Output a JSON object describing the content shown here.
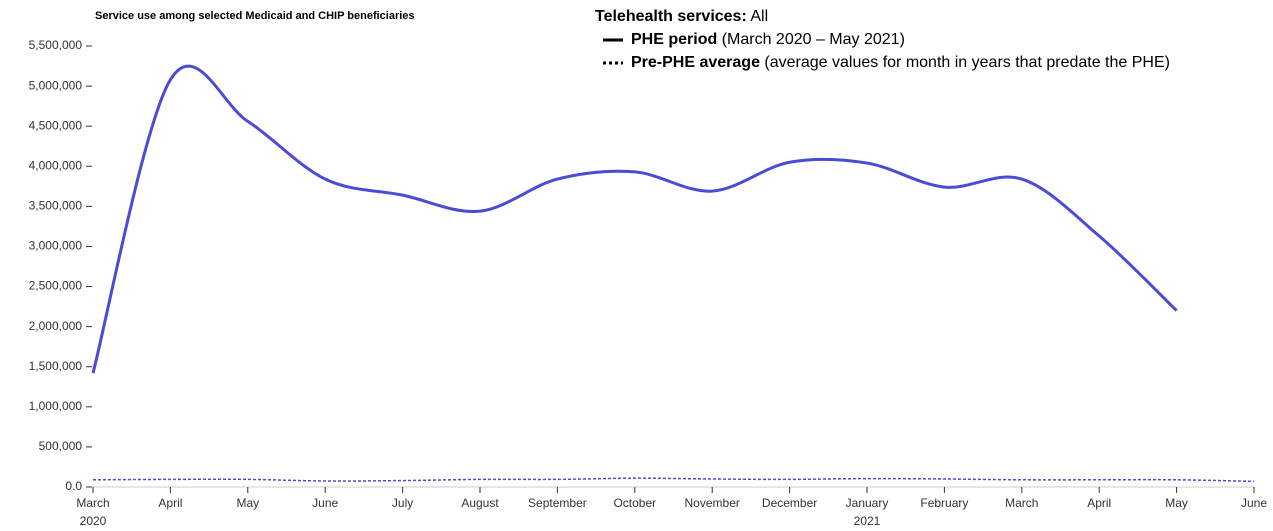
{
  "chart_data": {
    "type": "line",
    "title": "Service use among selected Medicaid and CHIP beneficiaries",
    "legend_title": "Telehealth services:",
    "legend_subtitle": "All",
    "categories": [
      "March",
      "April",
      "May",
      "June",
      "July",
      "August",
      "September",
      "October",
      "November",
      "December",
      "January",
      "February",
      "March",
      "April",
      "May",
      "June"
    ],
    "category_years": [
      "2020",
      null,
      null,
      null,
      null,
      null,
      null,
      null,
      null,
      null,
      "2021",
      null,
      null,
      null,
      null,
      null
    ],
    "series": [
      {
        "name": "PHE period",
        "description": "(March 2020 – May 2021)",
        "color": "#4b4bd6",
        "dash": "solid",
        "values": [
          1420000,
          5080000,
          4560000,
          3840000,
          3640000,
          3440000,
          3840000,
          3930000,
          3690000,
          4050000,
          4040000,
          3740000,
          3840000,
          3130000,
          2200000,
          null
        ]
      },
      {
        "name": "Pre-PHE average",
        "description": "(average values for month in years that predate the PHE)",
        "color": "#4b4bd6",
        "dash": "dotted",
        "values": [
          90000,
          95000,
          95000,
          75000,
          80000,
          95000,
          95000,
          110000,
          100000,
          95000,
          105000,
          100000,
          90000,
          90000,
          90000,
          70000
        ]
      }
    ],
    "ylim": [
      0,
      5500000
    ],
    "yticks": [
      {
        "value": 0,
        "label": "0.0"
      },
      {
        "value": 500000,
        "label": "500,000"
      },
      {
        "value": 1000000,
        "label": "1,000,000"
      },
      {
        "value": 1500000,
        "label": "1,500,000"
      },
      {
        "value": 2000000,
        "label": "2,000,000"
      },
      {
        "value": 2500000,
        "label": "2,500,000"
      },
      {
        "value": 3000000,
        "label": "3,000,000"
      },
      {
        "value": 3500000,
        "label": "3,500,000"
      },
      {
        "value": 4000000,
        "label": "4,000,000"
      },
      {
        "value": 4500000,
        "label": "4,500,000"
      },
      {
        "value": 5000000,
        "label": "5,000,000"
      },
      {
        "value": 5500000,
        "label": "5,500,000"
      }
    ]
  }
}
